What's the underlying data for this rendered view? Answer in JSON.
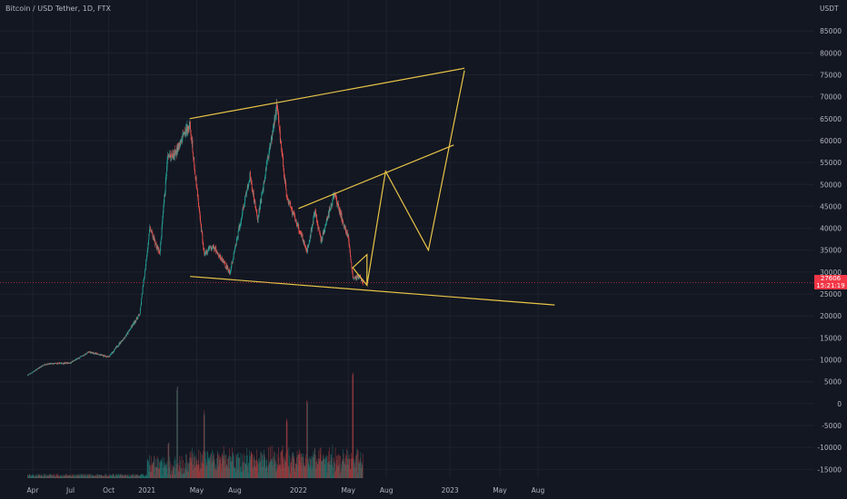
{
  "header": {
    "title": "Bitcoin / USD Tether, 1D, FTX"
  },
  "price_axis": {
    "unit": "USDT"
  },
  "last_price": {
    "value": "27606",
    "countdown": "15:21:19",
    "color": "#f23645"
  },
  "colors": {
    "background": "#131722",
    "up": "#26a69a",
    "down": "#ef5350",
    "drawing": "#e8c547"
  },
  "chart_data": {
    "type": "candlestick",
    "title": "Bitcoin / USD Tether, 1D, FTX",
    "x_ticks": [
      "Apr",
      "Jul",
      "Oct",
      "2021",
      "May",
      "Aug",
      "2022",
      "May",
      "Aug",
      "2023",
      "May",
      "Aug"
    ],
    "y_ticks": [
      85000,
      80000,
      75000,
      70000,
      65000,
      60000,
      55000,
      50000,
      45000,
      40000,
      35000,
      30000,
      25000,
      20000,
      15000,
      10000,
      5000,
      0,
      -5000,
      -10000,
      -15000
    ],
    "ylim": [
      -17000,
      90000
    ],
    "price_path": [
      {
        "date": "2020-03-20",
        "close": 6500
      },
      {
        "date": "2020-05-01",
        "close": 9000
      },
      {
        "date": "2020-07-01",
        "close": 9300
      },
      {
        "date": "2020-08-15",
        "close": 11800
      },
      {
        "date": "2020-10-01",
        "close": 10600
      },
      {
        "date": "2020-11-15",
        "close": 16000
      },
      {
        "date": "2020-12-15",
        "close": 20500
      },
      {
        "date": "2021-01-08",
        "close": 40000
      },
      {
        "date": "2021-02-01",
        "close": 34000
      },
      {
        "date": "2021-02-20",
        "close": 56000
      },
      {
        "date": "2021-03-10",
        "close": 57000
      },
      {
        "date": "2021-04-14",
        "close": 64000
      },
      {
        "date": "2021-05-19",
        "close": 34000
      },
      {
        "date": "2021-06-10",
        "close": 36000
      },
      {
        "date": "2021-07-20",
        "close": 29800
      },
      {
        "date": "2021-09-06",
        "close": 52000
      },
      {
        "date": "2021-09-25",
        "close": 42000
      },
      {
        "date": "2021-11-10",
        "close": 68000
      },
      {
        "date": "2021-12-04",
        "close": 47000
      },
      {
        "date": "2022-01-22",
        "close": 35000
      },
      {
        "date": "2022-02-10",
        "close": 44000
      },
      {
        "date": "2022-02-24",
        "close": 37000
      },
      {
        "date": "2022-03-28",
        "close": 47500
      },
      {
        "date": "2022-05-01",
        "close": 38000
      },
      {
        "date": "2022-05-12",
        "close": 28800
      },
      {
        "date": "2022-05-28",
        "close": 29000
      },
      {
        "date": "2022-06-05",
        "close": 27606
      }
    ],
    "volume_scale": {
      "zero": -17000,
      "peak": 7500
    },
    "volume_spikes": [
      {
        "date": "2021-02-22",
        "level": -8500
      },
      {
        "date": "2021-03-15",
        "level": 4000
      },
      {
        "date": "2021-05-19",
        "level": -1500
      },
      {
        "date": "2021-12-04",
        "level": -3000
      },
      {
        "date": "2022-01-22",
        "level": 1000
      },
      {
        "date": "2022-05-12",
        "level": 7500
      }
    ],
    "drawings": [
      {
        "name": "upper-trendline",
        "points": [
          {
            "date": "2021-04-14",
            "price": 65000
          },
          {
            "date": "2023-02-05",
            "price": 76500
          }
        ]
      },
      {
        "name": "lower-trendline",
        "points": [
          {
            "date": "2021-04-15",
            "price": 29000
          },
          {
            "date": "2023-09-10",
            "price": 22500
          }
        ]
      },
      {
        "name": "inner-channel-top",
        "points": [
          {
            "date": "2022-01-01",
            "price": 44500
          },
          {
            "date": "2023-01-10",
            "price": 59000
          }
        ]
      },
      {
        "name": "projection-path",
        "points": [
          {
            "date": "2022-06-15",
            "price": 27000
          },
          {
            "date": "2022-07-30",
            "price": 53000
          },
          {
            "date": "2022-11-10",
            "price": 35000
          },
          {
            "date": "2023-02-05",
            "price": 76000
          }
        ]
      },
      {
        "name": "small-triangle",
        "points": [
          {
            "date": "2022-05-12",
            "price": 31000
          },
          {
            "date": "2022-06-15",
            "price": 27000
          },
          {
            "date": "2022-06-15",
            "price": 34000
          }
        ]
      }
    ]
  }
}
